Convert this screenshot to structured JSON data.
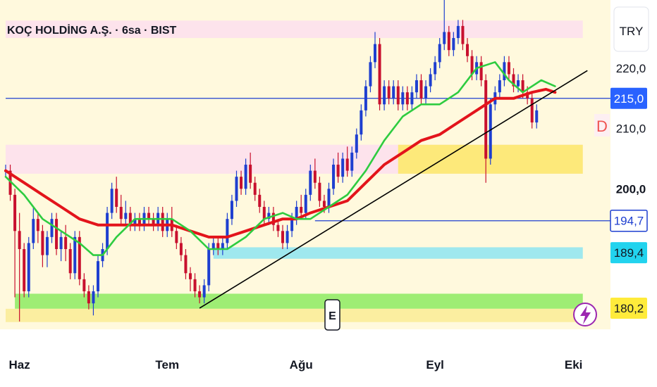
{
  "header": {
    "title": "KOÇ HOLDİNG A.Ş. · 6sa · BIST",
    "currency_button": "TRY",
    "indicator_letter": "D"
  },
  "markers": {
    "earnings_letter": "E"
  },
  "colors": {
    "up": "#1e3fd0",
    "down": "#c8102e",
    "ema_fast": "#2ecc40",
    "ema_slow": "#e3141b",
    "trendline": "#000000",
    "bg_band": "#fff9dd"
  },
  "chart_data": {
    "type": "candlestick",
    "title": "KOÇ HOLDİNG A.Ş. · 6sa · BIST",
    "ylim": [
      168.9,
      227.9
    ],
    "y_ticks": [
      {
        "value": 220.0,
        "label": "220,0",
        "bold": false
      },
      {
        "value": 210.0,
        "label": "210,0",
        "bold": false
      },
      {
        "value": 200.0,
        "label": "200,0",
        "bold": true
      }
    ],
    "x_ticks": [
      {
        "index": 3,
        "label": "Haz"
      },
      {
        "index": 35,
        "label": "Tem"
      },
      {
        "index": 64,
        "label": "Ağu"
      },
      {
        "index": 93,
        "label": "Eyl"
      },
      {
        "index": 123,
        "label": "Eki"
      }
    ],
    "price_tags": [
      {
        "value": 215.0,
        "label": "215,0",
        "bg": "#2962ff",
        "fg": "#ffffff"
      },
      {
        "value": 194.7,
        "label": "194,7",
        "bg": "#ffffff",
        "fg": "#1e3fd0",
        "border": "#1e3fd0"
      },
      {
        "value": 189.4,
        "label": "189,4",
        "bg": "#22d3ee",
        "fg": "#131722"
      },
      {
        "value": 180.2,
        "label": "180,2",
        "bg": "#ffeb3b",
        "fg": "#131722"
      }
    ],
    "horizontal_lines": [
      {
        "value": 215.0,
        "color": "#1e3fd0",
        "from_index": 0
      },
      {
        "value": 194.7,
        "color": "#1e3fd0",
        "from_index": 67
      }
    ],
    "zones": [
      {
        "from": 225.0,
        "to": 227.9,
        "color": "#fde3ec",
        "from_index": 0,
        "to_index": 125
      },
      {
        "from": 202.5,
        "to": 207.3,
        "color": "#fde3ec",
        "from_index": 0,
        "to_index": 125
      },
      {
        "from": 202.5,
        "to": 207.3,
        "color": "#fde97a",
        "from_index": 85,
        "to_index": 125
      },
      {
        "from": 188.4,
        "to": 190.3,
        "color": "#9fe8ee",
        "from_index": 45,
        "to_index": 125
      },
      {
        "from": 180.1,
        "to": 182.6,
        "color": "#9eed74",
        "from_index": 2,
        "to_index": 125
      },
      {
        "from": 177.9,
        "to": 180.1,
        "color": "#fbeea0",
        "from_index": 0,
        "to_index": 125
      }
    ],
    "trendline": [
      [
        42,
        180.2
      ],
      [
        126,
        219.6
      ]
    ],
    "ema_fast": [
      [
        0,
        202
      ],
      [
        4,
        199
      ],
      [
        8,
        195
      ],
      [
        12,
        193
      ],
      [
        16,
        191
      ],
      [
        19,
        189
      ],
      [
        21,
        189
      ],
      [
        24,
        192
      ],
      [
        28,
        195
      ],
      [
        32,
        195
      ],
      [
        36,
        195
      ],
      [
        40,
        193
      ],
      [
        44,
        190
      ],
      [
        48,
        190
      ],
      [
        52,
        192
      ],
      [
        56,
        195
      ],
      [
        60,
        196
      ],
      [
        63,
        195
      ],
      [
        66,
        195
      ],
      [
        70,
        197
      ],
      [
        74,
        199
      ],
      [
        78,
        203
      ],
      [
        82,
        208
      ],
      [
        86,
        212
      ],
      [
        90,
        214
      ],
      [
        94,
        214
      ],
      [
        98,
        216
      ],
      [
        102,
        220
      ],
      [
        106,
        221
      ],
      [
        109,
        218
      ],
      [
        112,
        216
      ],
      [
        116,
        218
      ],
      [
        119,
        217
      ]
    ],
    "ema_slow": [
      [
        0,
        203
      ],
      [
        4,
        201
      ],
      [
        8,
        199
      ],
      [
        12,
        197
      ],
      [
        16,
        195
      ],
      [
        20,
        194
      ],
      [
        24,
        194
      ],
      [
        28,
        194
      ],
      [
        32,
        194
      ],
      [
        36,
        194
      ],
      [
        40,
        193
      ],
      [
        44,
        192
      ],
      [
        48,
        192
      ],
      [
        52,
        193
      ],
      [
        56,
        194
      ],
      [
        60,
        195
      ],
      [
        63,
        195
      ],
      [
        66,
        196
      ],
      [
        70,
        197
      ],
      [
        74,
        198
      ],
      [
        78,
        201
      ],
      [
        82,
        204
      ],
      [
        86,
        206
      ],
      [
        90,
        208
      ],
      [
        94,
        209
      ],
      [
        98,
        211
      ],
      [
        102,
        213
      ],
      [
        106,
        215
      ],
      [
        110,
        215
      ],
      [
        114,
        216
      ],
      [
        117,
        216.5
      ],
      [
        119,
        216
      ]
    ],
    "candles": [
      [
        0,
        203,
        203,
        204,
        202
      ],
      [
        1,
        203,
        199,
        204,
        198
      ],
      [
        2,
        199,
        193,
        200,
        182
      ],
      [
        3,
        193,
        190,
        196,
        178
      ],
      [
        4,
        190,
        183,
        191,
        182
      ],
      [
        5,
        183,
        191,
        192,
        182
      ],
      [
        6,
        191,
        195,
        197,
        190
      ],
      [
        7,
        195,
        193,
        196,
        191
      ],
      [
        8,
        193,
        189,
        194,
        187
      ],
      [
        9,
        189,
        192,
        193,
        187
      ],
      [
        10,
        192,
        195,
        196,
        191
      ],
      [
        11,
        195,
        190,
        196,
        189
      ],
      [
        12,
        190,
        192,
        193,
        188
      ],
      [
        13,
        192,
        190,
        194,
        188
      ],
      [
        14,
        190,
        186,
        191,
        185
      ],
      [
        15,
        186,
        192,
        193,
        185
      ],
      [
        16,
        192,
        185,
        193,
        184
      ],
      [
        17,
        185,
        183,
        186,
        182
      ],
      [
        18,
        183,
        181,
        184,
        180
      ],
      [
        19,
        181,
        183,
        184,
        179
      ],
      [
        20,
        183,
        188,
        189,
        182
      ],
      [
        21,
        188,
        190,
        191,
        187
      ],
      [
        22,
        190,
        196,
        197,
        189
      ],
      [
        23,
        196,
        200,
        201,
        195
      ],
      [
        24,
        200,
        197,
        202,
        196
      ],
      [
        25,
        197,
        195,
        199,
        194
      ],
      [
        26,
        195,
        196,
        198,
        194
      ],
      [
        27,
        196,
        194,
        197,
        193
      ],
      [
        28,
        194,
        195,
        196,
        193
      ],
      [
        29,
        195,
        194,
        196,
        193
      ],
      [
        30,
        194,
        196,
        197,
        193
      ],
      [
        31,
        196,
        195,
        197,
        194
      ],
      [
        32,
        195,
        194,
        196,
        193
      ],
      [
        33,
        194,
        196,
        197,
        193
      ],
      [
        34,
        196,
        193,
        197,
        192
      ],
      [
        35,
        193,
        195,
        196,
        192
      ],
      [
        36,
        195,
        193,
        197,
        192
      ],
      [
        37,
        193,
        191,
        194,
        190
      ],
      [
        38,
        191,
        189,
        192,
        188
      ],
      [
        39,
        189,
        186,
        190,
        185
      ],
      [
        40,
        186,
        185,
        187,
        183
      ],
      [
        41,
        185,
        183,
        186,
        182
      ],
      [
        42,
        183,
        182,
        184,
        181
      ],
      [
        43,
        182,
        184,
        185,
        181
      ],
      [
        44,
        184,
        190,
        191,
        183
      ],
      [
        45,
        190,
        191,
        192,
        189
      ],
      [
        46,
        191,
        190,
        192,
        189
      ],
      [
        47,
        190,
        191,
        192,
        189
      ],
      [
        48,
        191,
        195,
        196,
        190
      ],
      [
        49,
        195,
        198,
        199,
        194
      ],
      [
        50,
        198,
        202,
        203,
        197
      ],
      [
        51,
        202,
        200,
        203,
        199
      ],
      [
        52,
        200,
        204,
        205,
        199
      ],
      [
        53,
        204,
        201,
        206,
        200
      ],
      [
        54,
        201,
        199,
        202,
        198
      ],
      [
        55,
        199,
        197,
        200,
        196
      ],
      [
        56,
        197,
        195,
        198,
        194
      ],
      [
        57,
        195,
        196,
        197,
        194
      ],
      [
        58,
        196,
        194,
        197,
        193
      ],
      [
        59,
        194,
        193,
        195,
        192
      ],
      [
        60,
        193,
        191,
        194,
        190
      ],
      [
        61,
        191,
        193,
        194,
        190
      ],
      [
        62,
        193,
        195,
        196,
        192
      ],
      [
        63,
        195,
        197,
        198,
        194
      ],
      [
        64,
        197,
        196,
        199,
        195
      ],
      [
        65,
        196,
        199,
        200,
        195
      ],
      [
        66,
        199,
        203,
        204,
        198
      ],
      [
        67,
        203,
        201,
        205,
        200
      ],
      [
        68,
        201,
        198,
        202,
        197
      ],
      [
        69,
        198,
        197,
        199,
        196
      ],
      [
        70,
        197,
        200,
        201,
        196
      ],
      [
        71,
        200,
        204,
        205,
        199
      ],
      [
        72,
        204,
        202,
        206,
        201
      ],
      [
        73,
        202,
        205,
        206,
        201
      ],
      [
        74,
        205,
        203,
        207,
        202
      ],
      [
        75,
        203,
        206,
        207,
        202
      ],
      [
        76,
        206,
        209,
        210,
        205
      ],
      [
        77,
        209,
        213,
        214,
        208
      ],
      [
        78,
        213,
        217,
        218,
        212
      ],
      [
        79,
        217,
        221,
        222,
        216
      ],
      [
        80,
        221,
        224,
        226,
        220
      ],
      [
        81,
        224,
        214,
        225,
        213
      ],
      [
        82,
        214,
        217,
        218,
        213
      ],
      [
        83,
        217,
        215,
        218,
        214
      ],
      [
        84,
        215,
        217,
        218,
        214
      ],
      [
        85,
        217,
        214,
        218,
        213
      ],
      [
        86,
        214,
        216,
        217,
        213
      ],
      [
        87,
        216,
        214,
        217,
        213
      ],
      [
        88,
        214,
        216,
        217,
        213
      ],
      [
        89,
        216,
        218,
        219,
        215
      ],
      [
        90,
        218,
        215,
        219,
        214
      ],
      [
        91,
        215,
        217,
        218,
        214
      ],
      [
        92,
        217,
        219,
        220,
        216
      ],
      [
        93,
        219,
        221,
        222,
        218
      ],
      [
        94,
        221,
        224,
        225,
        220
      ],
      [
        95,
        224,
        226,
        233,
        223
      ],
      [
        96,
        226,
        223,
        227,
        222
      ],
      [
        97,
        223,
        225,
        226,
        222
      ],
      [
        98,
        225,
        227,
        228,
        224
      ],
      [
        99,
        227,
        224,
        228,
        223
      ],
      [
        100,
        224,
        222,
        225,
        221
      ],
      [
        101,
        222,
        219,
        223,
        218
      ],
      [
        102,
        219,
        221,
        222,
        218
      ],
      [
        103,
        221,
        218,
        222,
        217
      ],
      [
        104,
        218,
        205,
        219,
        201
      ],
      [
        105,
        205,
        214,
        215,
        204
      ],
      [
        106,
        214,
        216,
        217,
        213
      ],
      [
        107,
        216,
        218,
        219,
        215
      ],
      [
        108,
        218,
        221,
        222,
        217
      ],
      [
        109,
        221,
        219,
        222,
        218
      ],
      [
        110,
        219,
        217,
        220,
        216
      ],
      [
        111,
        217,
        218,
        219,
        216
      ],
      [
        112,
        218,
        216,
        219,
        215
      ],
      [
        113,
        216,
        215,
        217,
        214
      ],
      [
        114,
        215,
        211,
        216,
        210
      ],
      [
        115,
        211,
        213,
        214,
        210
      ]
    ]
  }
}
